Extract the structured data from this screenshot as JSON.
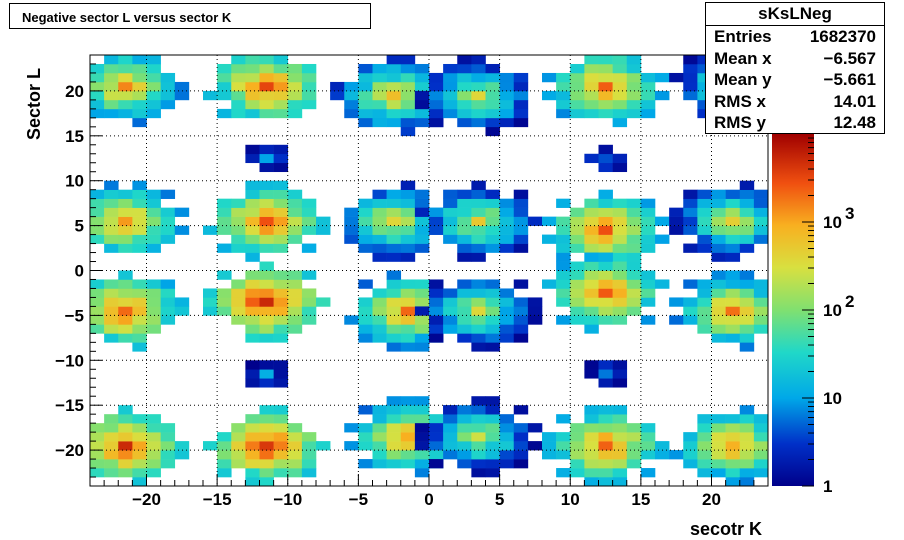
{
  "colors": {
    "frame": "#000000",
    "grid": "#000000"
  },
  "stats": {
    "name": "sKsLNeg",
    "rows": [
      {
        "label": "Entries",
        "value": "1682370"
      },
      {
        "label": "Mean x",
        "value": "−6.567"
      },
      {
        "label": "Mean y",
        "value": "−5.661"
      },
      {
        "label": "RMS x",
        "value": "14.01"
      },
      {
        "label": "RMS y",
        "value": "12.48"
      }
    ]
  },
  "chart_data": {
    "type": "heatmap",
    "title": "Negative sector L versus sector K",
    "xlabel": "secotr K",
    "ylabel": "Sector L",
    "xlim": [
      -24,
      24
    ],
    "ylim": [
      -24,
      24
    ],
    "bin_width": 1,
    "grid": true,
    "x_ticks": [
      "−20",
      "−15",
      "−10",
      "−5",
      "0",
      "5",
      "10",
      "15",
      "20"
    ],
    "x_tick_values": [
      -20,
      -15,
      -10,
      -5,
      0,
      5,
      10,
      15,
      20
    ],
    "y_ticks": [
      "20",
      "15",
      "10",
      "5",
      "0",
      "−5",
      "−10",
      "−15",
      "−20"
    ],
    "y_tick_values": [
      20,
      15,
      10,
      5,
      0,
      -5,
      -10,
      -15,
      -20
    ],
    "z_scale": "log",
    "z_range": [
      1,
      10000
    ],
    "z_ticks": [
      {
        "value": 1,
        "label": "1"
      },
      {
        "value": 10,
        "label": "10"
      },
      {
        "value": 100,
        "label": "10",
        "exp": "2"
      },
      {
        "value": 1000,
        "label": "10",
        "exp": "3"
      }
    ],
    "blocks": [
      {
        "kx": -22,
        "ly": 20,
        "peak": 1200
      },
      {
        "kx": -12,
        "ly": 20,
        "peak": 3000
      },
      {
        "kx": -3,
        "ly": 19,
        "peak": 600
      },
      {
        "kx": 3,
        "ly": 19,
        "peak": 300
      },
      {
        "kx": 12,
        "ly": 20,
        "peak": 2000
      },
      {
        "kx": 21,
        "ly": 20,
        "peak": 300
      },
      {
        "kx": -12,
        "ly": 12,
        "peak": 8
      },
      {
        "kx": 12,
        "ly": 12,
        "peak": 8
      },
      {
        "kx": -22,
        "ly": 5,
        "peak": 1500
      },
      {
        "kx": -12,
        "ly": 5,
        "peak": 3000
      },
      {
        "kx": -3,
        "ly": 5,
        "peak": 500
      },
      {
        "kx": 3,
        "ly": 5,
        "peak": 400
      },
      {
        "kx": 12,
        "ly": 4,
        "peak": 2500
      },
      {
        "kx": 21,
        "ly": 5,
        "peak": 400
      },
      {
        "kx": -22,
        "ly": -5,
        "peak": 3000
      },
      {
        "kx": -12,
        "ly": -4,
        "peak": 6000
      },
      {
        "kx": -2,
        "ly": -5,
        "peak": 1500
      },
      {
        "kx": 3,
        "ly": -5,
        "peak": 300
      },
      {
        "kx": 12,
        "ly": -3,
        "peak": 2500
      },
      {
        "kx": 21,
        "ly": -5,
        "peak": 1500
      },
      {
        "kx": -12,
        "ly": -12,
        "peak": 8
      },
      {
        "kx": 12,
        "ly": -12,
        "peak": 8
      },
      {
        "kx": -22,
        "ly": -20,
        "peak": 4000
      },
      {
        "kx": -12,
        "ly": -20,
        "peak": 5000
      },
      {
        "kx": -2,
        "ly": -19,
        "peak": 1500
      },
      {
        "kx": 3,
        "ly": -19,
        "peak": 300
      },
      {
        "kx": 12,
        "ly": -20,
        "peak": 2500
      },
      {
        "kx": 21,
        "ly": -20,
        "peak": 1500
      }
    ]
  }
}
